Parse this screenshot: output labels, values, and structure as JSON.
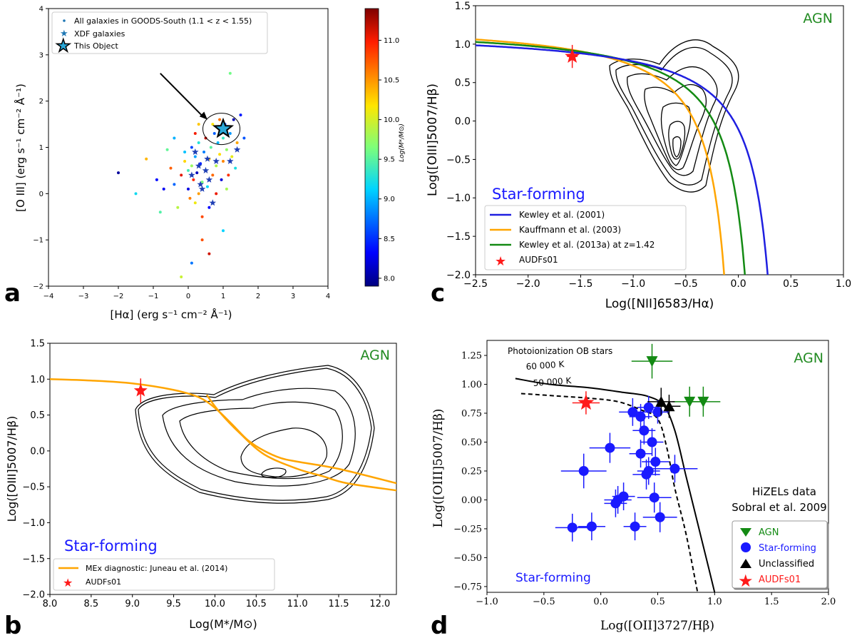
{
  "panels": {
    "a": {
      "letter": "a",
      "xlabel": "[Hα] (erg s⁻¹ cm⁻² Å⁻¹)",
      "ylabel": "[O III] (erg s⁻¹ cm⁻² Å⁻¹)",
      "colorbar_label": "Log(M*/M⊙)",
      "legend": [
        "All galaxies in GOODS-South (1.1 < z < 1.55)",
        "XDF galaxies",
        "This Object"
      ]
    },
    "b": {
      "letter": "b",
      "xlabel": "Log(M*/M⊙)",
      "ylabel": "Log([OIII]5007/Hβ)",
      "region_agn": "AGN",
      "region_sf": "Star-forming",
      "legend": [
        "MEx diagnostic: Juneau et al. (2014)",
        "AUDFs01"
      ]
    },
    "c": {
      "letter": "c",
      "xlabel": "Log([NII]6583/Hα)",
      "ylabel": "Log([OIII]5007/Hβ)",
      "region_agn": "AGN",
      "region_sf": "Star-forming",
      "legend": [
        "Kewley et al. (2001)",
        "Kauffmann et al. (2003)",
        "Kewley et al. (2013a) at z=1.42",
        "AUDFs01"
      ]
    },
    "d": {
      "letter": "d",
      "xlabel": "Log([OII]3727/Hβ)",
      "ylabel": "Log([OIII]5007/Hβ)",
      "region_agn": "AGN",
      "region_sf": "Star-forming",
      "photo_title": "Photoionization OB stars",
      "temp1": "60 000 K",
      "temp2": "50 000 K",
      "hizels1": "HiZELs data",
      "hizels2": "Sobral et al. 2009",
      "legend": [
        "AGN",
        "Star-forming",
        "Unclassified",
        "AUDFs01"
      ]
    }
  },
  "colors": {
    "kewley01": "#1f1fe0",
    "kauffmann": "#ffa500",
    "kewley13": "#138a13",
    "agn_green": "#228b22",
    "sf_blue": "#1a1aff",
    "star_red": "#ff1a1a",
    "contour": "#000000"
  },
  "chart_data": [
    {
      "panel": "a",
      "type": "scatter",
      "xlabel": "[Hα] (erg s⁻¹ cm⁻² Å⁻¹)",
      "ylabel": "[O III] (erg s⁻¹ cm⁻² Å⁻¹)",
      "xlim": [
        -4,
        4
      ],
      "ylim": [
        -2,
        4
      ],
      "xticks": [
        -4,
        -3,
        -2,
        -1,
        0,
        1,
        2,
        3,
        4
      ],
      "yticks": [
        -2,
        -1,
        0,
        1,
        2,
        3,
        4
      ],
      "colorbar": {
        "label": "Log(M*/M⊙)",
        "range": [
          7.9,
          11.4
        ],
        "ticks": [
          8.0,
          8.5,
          9.0,
          9.5,
          10.0,
          10.5,
          11.0
        ],
        "colormap": "jet"
      },
      "series": [
        {
          "name": "All galaxies in GOODS-South (1.1 < z < 1.55)",
          "points": [
            [
              -2.0,
              0.45
            ],
            [
              -1.5,
              0.0
            ],
            [
              -1.2,
              0.75
            ],
            [
              -0.9,
              0.3
            ],
            [
              -0.6,
              0.95
            ],
            [
              -0.5,
              0.55
            ],
            [
              -0.4,
              0.2
            ],
            [
              -0.3,
              -0.3
            ],
            [
              -0.2,
              0.4
            ],
            [
              -0.1,
              0.9
            ],
            [
              -0.1,
              0.7
            ],
            [
              0.0,
              0.1
            ],
            [
              0.0,
              0.5
            ],
            [
              0.05,
              -0.1
            ],
            [
              0.1,
              1.0
            ],
            [
              0.1,
              0.6
            ],
            [
              0.15,
              0.3
            ],
            [
              0.2,
              0.8
            ],
            [
              0.2,
              -0.2
            ],
            [
              0.25,
              0.45
            ],
            [
              0.3,
              1.1
            ],
            [
              0.3,
              0.0
            ],
            [
              0.35,
              0.65
            ],
            [
              0.4,
              0.25
            ],
            [
              0.4,
              -0.5
            ],
            [
              0.45,
              0.9
            ],
            [
              0.5,
              0.5
            ],
            [
              0.5,
              1.2
            ],
            [
              0.55,
              0.15
            ],
            [
              0.6,
              0.75
            ],
            [
              0.6,
              -0.3
            ],
            [
              0.65,
              1.0
            ],
            [
              0.7,
              0.4
            ],
            [
              0.75,
              1.3
            ],
            [
              0.8,
              0.6
            ],
            [
              0.8,
              0.0
            ],
            [
              0.85,
              1.1
            ],
            [
              0.9,
              0.85
            ],
            [
              0.95,
              0.3
            ],
            [
              1.0,
              1.2
            ],
            [
              1.0,
              0.7
            ],
            [
              1.05,
              1.5
            ],
            [
              1.1,
              0.95
            ],
            [
              1.15,
              0.4
            ],
            [
              1.2,
              1.3
            ],
            [
              1.25,
              0.8
            ],
            [
              1.3,
              1.6
            ],
            [
              1.35,
              0.55
            ],
            [
              1.4,
              1.1
            ],
            [
              1.5,
              1.7
            ],
            [
              1.2,
              2.6
            ],
            [
              0.4,
              -1.0
            ],
            [
              0.1,
              -1.5
            ],
            [
              -0.2,
              -1.8
            ],
            [
              0.6,
              -1.3
            ],
            [
              1.0,
              -0.8
            ],
            [
              0.3,
              1.5
            ],
            [
              -0.7,
              0.1
            ],
            [
              -0.8,
              -0.4
            ],
            [
              0.9,
              1.6
            ],
            [
              1.6,
              1.2
            ],
            [
              1.1,
              0.1
            ],
            [
              0.2,
              1.3
            ],
            [
              -0.4,
              1.2
            ],
            [
              0.7,
              1.5
            ]
          ]
        },
        {
          "name": "XDF galaxies",
          "points": [
            [
              0.2,
              0.9
            ],
            [
              0.3,
              0.6
            ],
            [
              0.5,
              0.5
            ],
            [
              0.6,
              0.3
            ],
            [
              0.4,
              0.1
            ],
            [
              0.7,
              -0.2
            ],
            [
              0.8,
              0.7
            ],
            [
              1.2,
              0.7
            ],
            [
              1.4,
              0.95
            ],
            [
              0.1,
              0.4
            ],
            [
              0.55,
              0.75
            ],
            [
              0.35,
              0.2
            ]
          ]
        },
        {
          "name": "This Object",
          "points": [
            [
              1.0,
              1.4
            ]
          ]
        }
      ],
      "annotations": {
        "arrow_from": [
          -0.8,
          2.6
        ],
        "arrow_to": [
          0.55,
          1.6
        ],
        "circle_center": [
          0.95,
          1.4
        ]
      }
    },
    {
      "panel": "b",
      "type": "line",
      "xlabel": "Log(M*/M⊙)",
      "ylabel": "Log([OIII]5007/Hβ)",
      "xlim": [
        8.0,
        12.2
      ],
      "ylim": [
        -2.0,
        1.5
      ],
      "xticks": [
        8.0,
        8.5,
        9.0,
        9.5,
        10.0,
        10.5,
        11.0,
        11.5,
        12.0
      ],
      "yticks": [
        -2.0,
        -1.5,
        -1.0,
        -0.5,
        0.0,
        0.5,
        1.0,
        1.5
      ],
      "series": [
        {
          "name": "MEx diagnostic: Juneau et al. (2014)",
          "upper": [
            [
              8.0,
              1.0
            ],
            [
              8.5,
              0.98
            ],
            [
              9.0,
              0.94
            ],
            [
              9.5,
              0.85
            ],
            [
              9.8,
              0.75
            ],
            [
              10.0,
              0.6
            ],
            [
              10.2,
              0.38
            ],
            [
              10.4,
              0.15
            ],
            [
              10.6,
              0.0
            ],
            [
              10.8,
              -0.1
            ],
            [
              11.0,
              -0.15
            ],
            [
              11.5,
              -0.25
            ],
            [
              12.2,
              -0.45
            ]
          ],
          "lower": [
            [
              9.9,
              0.78
            ],
            [
              10.05,
              0.55
            ],
            [
              10.3,
              0.25
            ],
            [
              10.6,
              -0.05
            ],
            [
              11.0,
              -0.25
            ],
            [
              11.3,
              -0.35
            ],
            [
              11.6,
              -0.45
            ],
            [
              12.2,
              -0.55
            ]
          ]
        },
        {
          "name": "AUDFs01",
          "points": [
            [
              9.1,
              0.84
            ]
          ],
          "yerr": 0.17
        }
      ]
    },
    {
      "panel": "c",
      "type": "line",
      "xlabel": "Log([NII]6583/Hα)",
      "ylabel": "Log([OIII]5007/Hβ)",
      "xlim": [
        -2.5,
        1.0
      ],
      "ylim": [
        -2.0,
        1.5
      ],
      "xticks": [
        -2.5,
        -2.0,
        -1.5,
        -1.0,
        -0.5,
        0.0,
        0.5,
        1.0
      ],
      "yticks": [
        -2.0,
        -1.5,
        -1.0,
        -0.5,
        0.0,
        0.5,
        1.0,
        1.5
      ],
      "series": [
        {
          "name": "Kewley et al. (2001)",
          "formula": "0.61/(x-0.47)+1.19"
        },
        {
          "name": "Kauffmann et al. (2003)",
          "formula": "0.61/(x-0.05)+1.3"
        },
        {
          "name": "Kewley et al. (2013a) at z=1.42",
          "formula": "0.61/(x-0.25)+1.25"
        },
        {
          "name": "AUDFs01",
          "points": [
            [
              -1.58,
              0.84
            ]
          ],
          "yerr": 0.15,
          "xerr": 0.05
        }
      ]
    },
    {
      "panel": "d",
      "type": "scatter",
      "xlabel": "Log([OII]3727/Hβ)",
      "ylabel": "Log([OIII]5007/Hβ)",
      "xlim": [
        -1.0,
        2.0
      ],
      "ylim": [
        -0.8,
        1.38
      ],
      "xticks": [
        -1.0,
        -0.5,
        0.0,
        0.5,
        1.0,
        1.5,
        2.0
      ],
      "yticks": [
        -0.75,
        -0.5,
        -0.25,
        0.0,
        0.25,
        0.5,
        0.75,
        1.0,
        1.25
      ],
      "series": [
        {
          "name": "AGN",
          "points": [
            [
              0.45,
              1.2,
              0.18,
              0.15
            ],
            [
              0.78,
              0.85,
              0.15,
              0.13
            ],
            [
              0.9,
              0.85,
              0.15,
              0.13
            ]
          ]
        },
        {
          "name": "Star-forming",
          "points": [
            [
              0.28,
              0.76,
              0.12,
              0.12
            ],
            [
              0.35,
              0.72,
              0.1,
              0.11
            ],
            [
              0.42,
              0.8,
              0.1,
              0.1
            ],
            [
              0.5,
              0.76,
              0.1,
              0.1
            ],
            [
              0.38,
              0.6,
              0.1,
              0.12
            ],
            [
              0.45,
              0.5,
              0.1,
              0.12
            ],
            [
              0.08,
              0.45,
              0.18,
              0.13
            ],
            [
              0.35,
              0.4,
              0.1,
              0.12
            ],
            [
              0.48,
              0.33,
              0.12,
              0.12
            ],
            [
              0.65,
              0.27,
              0.2,
              0.12
            ],
            [
              -0.15,
              0.25,
              0.2,
              0.15
            ],
            [
              0.42,
              0.25,
              0.1,
              0.12
            ],
            [
              0.4,
              0.22,
              0.12,
              0.13
            ],
            [
              0.2,
              0.03,
              0.1,
              0.12
            ],
            [
              0.15,
              0.0,
              0.12,
              0.12
            ],
            [
              0.13,
              -0.03,
              0.1,
              0.12
            ],
            [
              0.47,
              0.02,
              0.15,
              0.13
            ],
            [
              0.52,
              -0.15,
              0.15,
              0.13
            ],
            [
              -0.25,
              -0.24,
              0.15,
              0.12
            ],
            [
              -0.08,
              -0.23,
              0.12,
              0.12
            ],
            [
              0.3,
              -0.23,
              0.1,
              0.12
            ]
          ]
        },
        {
          "name": "Unclassified",
          "points": [
            [
              0.53,
              0.85,
              0.12,
              0.12
            ],
            [
              0.6,
              0.81,
              0.1,
              0.1
            ]
          ]
        },
        {
          "name": "AUDFs01",
          "points": [
            [
              -0.13,
              0.84,
              0.12,
              0.1
            ]
          ]
        }
      ],
      "curves": {
        "t60000": [
          [
            -0.75,
            1.05
          ],
          [
            -0.45,
            1.0
          ],
          [
            -0.1,
            0.97
          ],
          [
            0.2,
            0.93
          ],
          [
            0.4,
            0.9
          ],
          [
            0.55,
            0.82
          ],
          [
            0.65,
            0.6
          ],
          [
            0.75,
            0.2
          ],
          [
            0.85,
            -0.2
          ],
          [
            0.95,
            -0.6
          ],
          [
            1.0,
            -0.8
          ]
        ],
        "t50000": [
          [
            -0.7,
            0.92
          ],
          [
            -0.4,
            0.9
          ],
          [
            -0.1,
            0.88
          ],
          [
            0.15,
            0.85
          ],
          [
            0.35,
            0.78
          ],
          [
            0.5,
            0.7
          ],
          [
            0.58,
            0.45
          ],
          [
            0.65,
            0.1
          ],
          [
            0.75,
            -0.3
          ],
          [
            0.85,
            -0.8
          ]
        ]
      }
    }
  ]
}
